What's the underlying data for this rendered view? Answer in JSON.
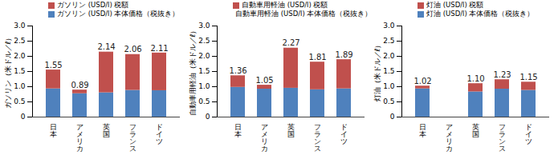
{
  "chart_data": [
    {
      "type": "bar",
      "stacked": true,
      "data_labels": true,
      "y_label": "ガソリン（米ドル／ℓ）",
      "categories": [
        "日本",
        "アメリカ",
        "英国",
        "フランス",
        "ドイツ"
      ],
      "series": [
        {
          "name": "ガソリン (USD/l) 税額",
          "color": "#c0504d",
          "values": [
            0.62,
            0.12,
            1.34,
            1.18,
            1.24
          ]
        },
        {
          "name": "ガソリン (USD/l) 本体価格（税抜き）",
          "color": "#4f81bd",
          "values": [
            0.93,
            0.77,
            0.8,
            0.88,
            0.87
          ]
        }
      ],
      "totals": [
        1.55,
        0.89,
        2.14,
        2.06,
        2.11
      ],
      "total_labels": [
        "1.55",
        "0.89",
        "2.14",
        "2.06",
        "2.11"
      ],
      "ylim": [
        0,
        3
      ],
      "yticks": [
        0,
        0.5,
        {
          "value": 1,
          "label": "1.0"
        },
        1.5,
        {
          "value": 2,
          "label": "2.0"
        },
        2.5,
        {
          "value": 3,
          "label": "3.0"
        }
      ]
    },
    {
      "type": "bar",
      "stacked": true,
      "data_labels": true,
      "y_label": "自動車用軽油（米ドル／ℓ）",
      "categories": [
        "日本",
        "アメリカ",
        "英国",
        "フランス",
        "ドイツ"
      ],
      "series": [
        {
          "name": "自動車用軽油 (USD/l) 税額",
          "color": "#c0504d",
          "values": [
            0.38,
            0.13,
            1.32,
            0.91,
            0.96
          ]
        },
        {
          "name": "自動車用軽油 (USD/l) 本体価格（税抜き）",
          "color": "#4f81bd",
          "values": [
            0.98,
            0.92,
            0.95,
            0.9,
            0.93
          ]
        }
      ],
      "totals": [
        1.36,
        1.05,
        2.27,
        1.81,
        1.89
      ],
      "total_labels": [
        "1.36",
        "1.05",
        "2.27",
        "1.81",
        "1.89"
      ],
      "ylim": [
        0,
        3
      ],
      "yticks": [
        0,
        0.5,
        {
          "value": 1,
          "label": "1.0"
        },
        1.5,
        {
          "value": 2,
          "label": "2.0"
        },
        2.5,
        {
          "value": 3,
          "label": "3.0"
        }
      ]
    },
    {
      "type": "bar",
      "stacked": true,
      "data_labels": true,
      "y_label": "灯油（米ドル／ℓ）",
      "categories": [
        "日本",
        "アメリカ",
        "英国",
        "フランス",
        "ドイツ"
      ],
      "series": [
        {
          "name": "灯油 (USD/l) 税額",
          "color": "#c0504d",
          "values": [
            0.09,
            null,
            0.27,
            0.31,
            0.27
          ]
        },
        {
          "name": "灯油 (USD/l) 本体価格（税抜き）",
          "color": "#4f81bd",
          "values": [
            0.93,
            null,
            0.83,
            0.92,
            0.88
          ]
        }
      ],
      "totals": [
        1.02,
        null,
        1.1,
        1.23,
        1.15
      ],
      "total_labels": [
        "1.02",
        null,
        "1.10",
        "1.23",
        "1.15"
      ],
      "ylim": [
        0,
        3
      ],
      "yticks": [
        0,
        0.5,
        {
          "value": 1,
          "label": "1.0"
        },
        1.5,
        {
          "value": 2,
          "label": "2.0"
        },
        2.5,
        {
          "value": 3,
          "label": "3.0"
        }
      ]
    }
  ]
}
